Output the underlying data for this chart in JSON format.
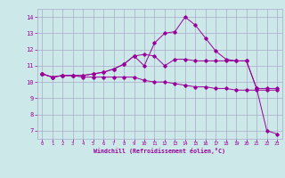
{
  "xlabel": "Windchill (Refroidissement éolien,°C)",
  "bg_color": "#cce8e8",
  "line_color": "#990099",
  "grid_color": "#aaaacc",
  "ylim": [
    6.5,
    14.5
  ],
  "xlim": [
    -0.5,
    23.5
  ],
  "yticks": [
    7,
    8,
    9,
    10,
    11,
    12,
    13,
    14
  ],
  "xticks": [
    0,
    1,
    2,
    3,
    4,
    5,
    6,
    7,
    8,
    9,
    10,
    11,
    12,
    13,
    14,
    15,
    16,
    17,
    18,
    19,
    20,
    21,
    22,
    23
  ],
  "series1_y": [
    10.5,
    10.3,
    10.4,
    10.4,
    10.3,
    10.3,
    10.3,
    10.3,
    10.3,
    10.3,
    10.1,
    10.0,
    10.0,
    9.9,
    9.8,
    9.7,
    9.7,
    9.6,
    9.6,
    9.5,
    9.5,
    9.5,
    9.5,
    9.5
  ],
  "series2_y": [
    10.5,
    10.3,
    10.4,
    10.4,
    10.4,
    10.5,
    10.6,
    10.8,
    11.1,
    11.6,
    11.0,
    12.4,
    13.0,
    13.1,
    14.0,
    13.5,
    12.7,
    11.9,
    11.4,
    11.3,
    11.3,
    9.6,
    7.0,
    6.8
  ],
  "series3_y": [
    10.5,
    10.3,
    10.4,
    10.4,
    10.4,
    10.5,
    10.6,
    10.8,
    11.1,
    11.6,
    11.7,
    11.6,
    11.0,
    11.4,
    11.4,
    11.3,
    11.3,
    11.3,
    11.3,
    11.3,
    11.3,
    9.6,
    9.6,
    9.6
  ]
}
